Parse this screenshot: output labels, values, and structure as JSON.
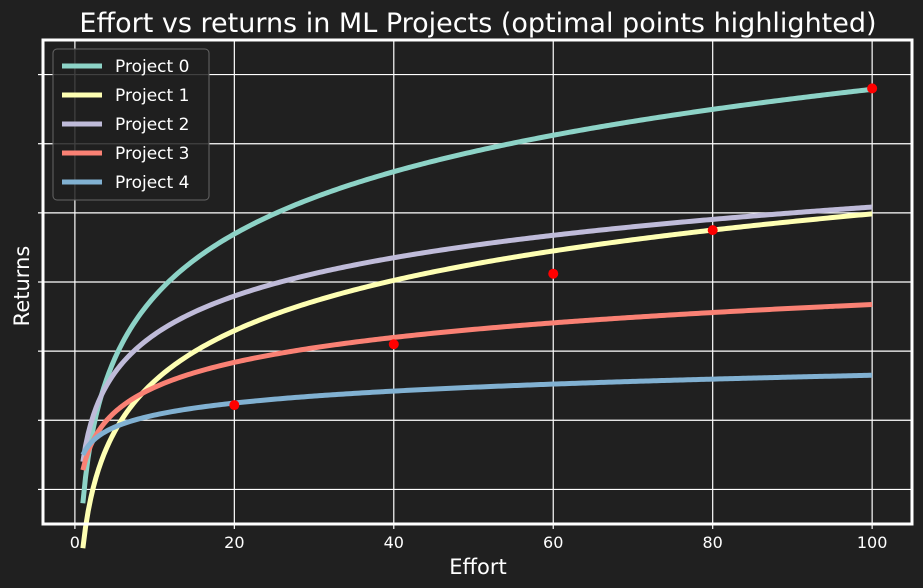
{
  "chart_data": {
    "type": "line",
    "title": "Effort vs returns in ML Projects (optimal points highlighted)",
    "xlabel": "Effort",
    "ylabel": "Returns",
    "xlim": [
      -4,
      105
    ],
    "ylim": [
      -0.5,
      6.5
    ],
    "xticks": [
      0,
      20,
      40,
      60,
      80,
      100
    ],
    "yticks": [
      0,
      1,
      2,
      3,
      4,
      5,
      6
    ],
    "ytick_labels_visible": false,
    "grid": true,
    "legend": "top-left",
    "series": [
      {
        "name": "Project 0",
        "color": "#8dd3c7",
        "a": 1.3,
        "b": -0.2,
        "optimal": [
          100,
          5.8
        ]
      },
      {
        "name": "Project 1",
        "color": "#feffb3",
        "a": 1.05,
        "b": -0.85,
        "optimal": [
          80,
          3.75
        ]
      },
      {
        "name": "Project 2",
        "color": "#bfbbd9",
        "a": 0.8,
        "b": 0.4,
        "optimal": [
          60,
          3.12
        ]
      },
      {
        "name": "Project 3",
        "color": "#fa8174",
        "a": 0.52,
        "b": 0.28,
        "optimal": [
          40,
          2.1
        ]
      },
      {
        "name": "Project 4",
        "color": "#81b1d2",
        "a": 0.25,
        "b": 0.5,
        "optimal": [
          20,
          1.22
        ]
      }
    ],
    "x_range": [
      1,
      100
    ],
    "optimal_marker_color": "#ff0000"
  }
}
